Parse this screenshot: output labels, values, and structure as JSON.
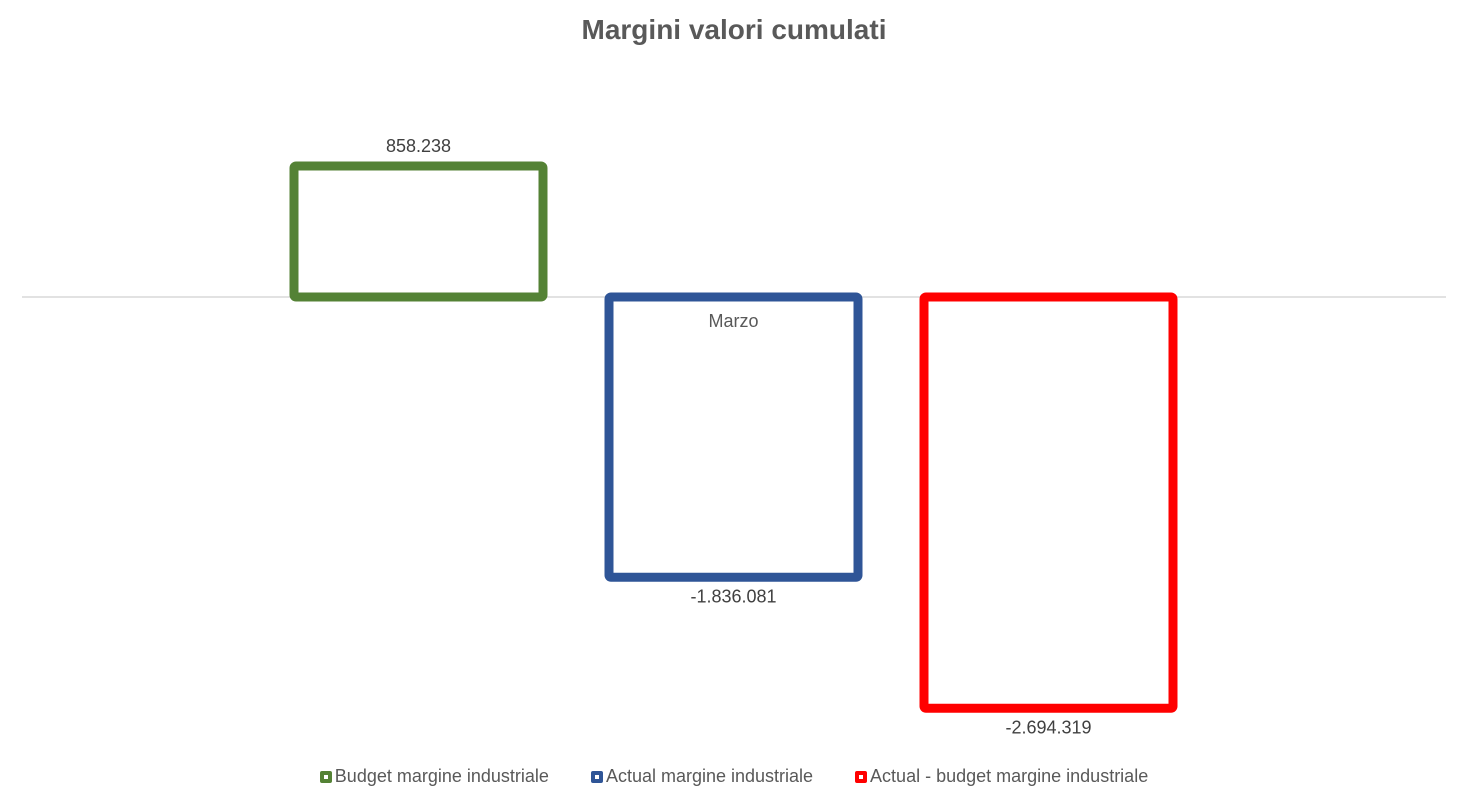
{
  "chart_data": {
    "type": "bar",
    "title": "Margini valori cumulati",
    "categories": [
      "Marzo"
    ],
    "series": [
      {
        "name": "Budget margine industriale",
        "values": [
          858238
        ],
        "label": "858.238",
        "color": "#548235"
      },
      {
        "name": "Actual margine industriale",
        "values": [
          -1836081
        ],
        "label": "-1.836.081",
        "color": "#2F5597"
      },
      {
        "name": "Actual - budget margine industriale",
        "values": [
          -2694319
        ],
        "label": "-2.694.319",
        "color": "#FF0000"
      }
    ],
    "xlabel": "",
    "ylabel": "",
    "ylim": [
      -3000000,
      1500000
    ],
    "grid": false,
    "bar_fill": "none",
    "legend_position": "bottom"
  }
}
